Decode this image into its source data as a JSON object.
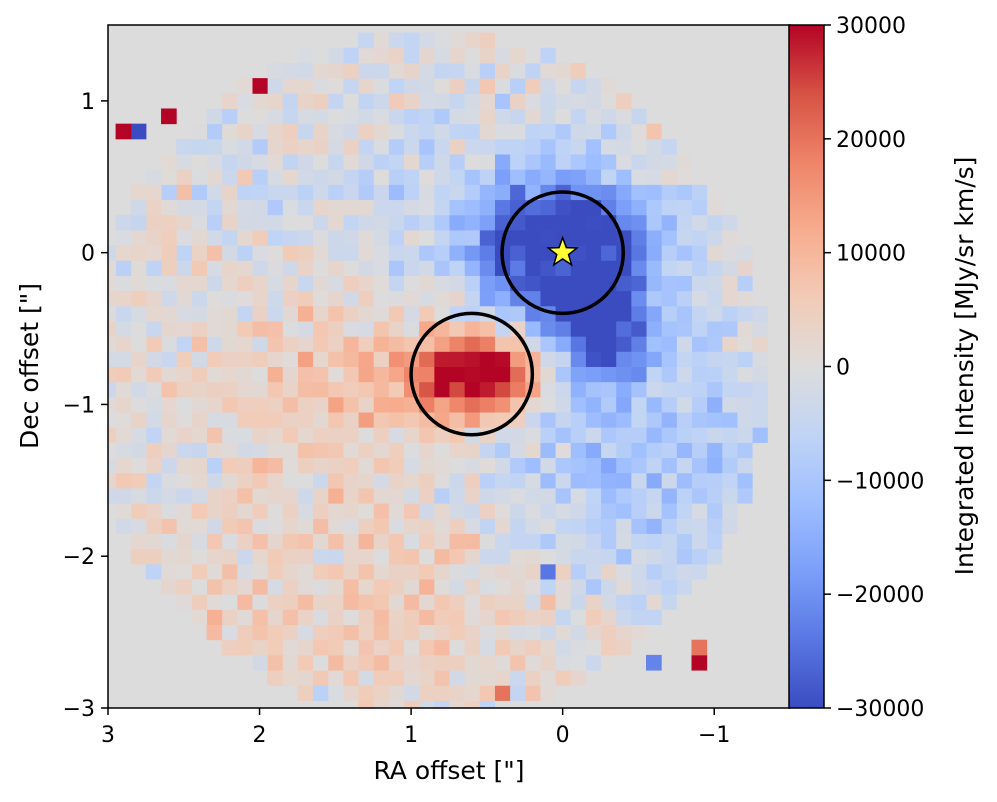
{
  "chart_data": {
    "type": "heatmap",
    "title": "",
    "xlabel": "RA offset [\"]",
    "ylabel": "Dec offset [\"]",
    "xlim": [
      3,
      -1.5
    ],
    "ylim": [
      -3,
      1.5
    ],
    "x_ticks": [
      3,
      2,
      1,
      0,
      -1
    ],
    "x_tick_labels": [
      "3",
      "2",
      "1",
      "0",
      "−1"
    ],
    "y_ticks": [
      1,
      0,
      -1,
      -2,
      -3
    ],
    "y_tick_labels": [
      "1",
      "0",
      "−1",
      "−2",
      "−3"
    ],
    "colormap": "coolwarm",
    "colorbar": {
      "label": "Integrated Intensity [MJy/sr km/s]",
      "range": [
        -30000,
        30000
      ],
      "ticks": [
        30000,
        20000,
        10000,
        0,
        -10000,
        -20000,
        -30000
      ],
      "tick_labels": [
        "30000",
        "20000",
        "10000",
        "0",
        "−10000",
        "−20000",
        "−30000"
      ]
    },
    "grid": false,
    "background_color": "#dcdcdc",
    "pixel_size_arcsec": 0.1,
    "field_of_view": {
      "center": [
        0.9,
        -0.8
      ],
      "radius_arcsec": 2.25
    },
    "features": [
      {
        "kind": "blueshifted_lobe",
        "center": [
          0.0,
          0.0
        ],
        "peak": -30000
      },
      {
        "kind": "blueshifted_extension",
        "center": [
          -0.3,
          -0.55
        ],
        "peak": -28000
      },
      {
        "kind": "redshifted_lobe",
        "center": [
          0.55,
          -0.8
        ],
        "peak": 28000
      },
      {
        "kind": "diffuse_red_emission",
        "center": [
          1.1,
          -0.8
        ],
        "peak": 9000
      },
      {
        "kind": "diffuse_blue_emission",
        "center": [
          -0.2,
          -1.3
        ],
        "peak": -8000
      }
    ],
    "hot_pixels": [
      {
        "x": 2.0,
        "y": 1.1,
        "value": 30000
      },
      {
        "x": 2.6,
        "y": 0.9,
        "value": 30000
      },
      {
        "x": 2.9,
        "y": 0.8,
        "value": 30000
      },
      {
        "x": 2.8,
        "y": 0.8,
        "value": -30000
      },
      {
        "x": -0.9,
        "y": -2.7,
        "value": 30000
      },
      {
        "x": -0.9,
        "y": -2.6,
        "value": 20000
      },
      {
        "x": -0.6,
        "y": -2.7,
        "value": -22000
      },
      {
        "x": 0.4,
        "y": -2.9,
        "value": 20000
      },
      {
        "x": 0.1,
        "y": -2.1,
        "value": -24000
      }
    ],
    "circles": [
      {
        "center": [
          0.0,
          0.0
        ],
        "radius": 0.4,
        "color": "#000000"
      },
      {
        "center": [
          0.6,
          -0.8
        ],
        "radius": 0.4,
        "color": "#000000"
      }
    ],
    "star_marker": {
      "x": 0.0,
      "y": 0.0,
      "color": "#ffff33",
      "edge_color": "#000000"
    }
  }
}
